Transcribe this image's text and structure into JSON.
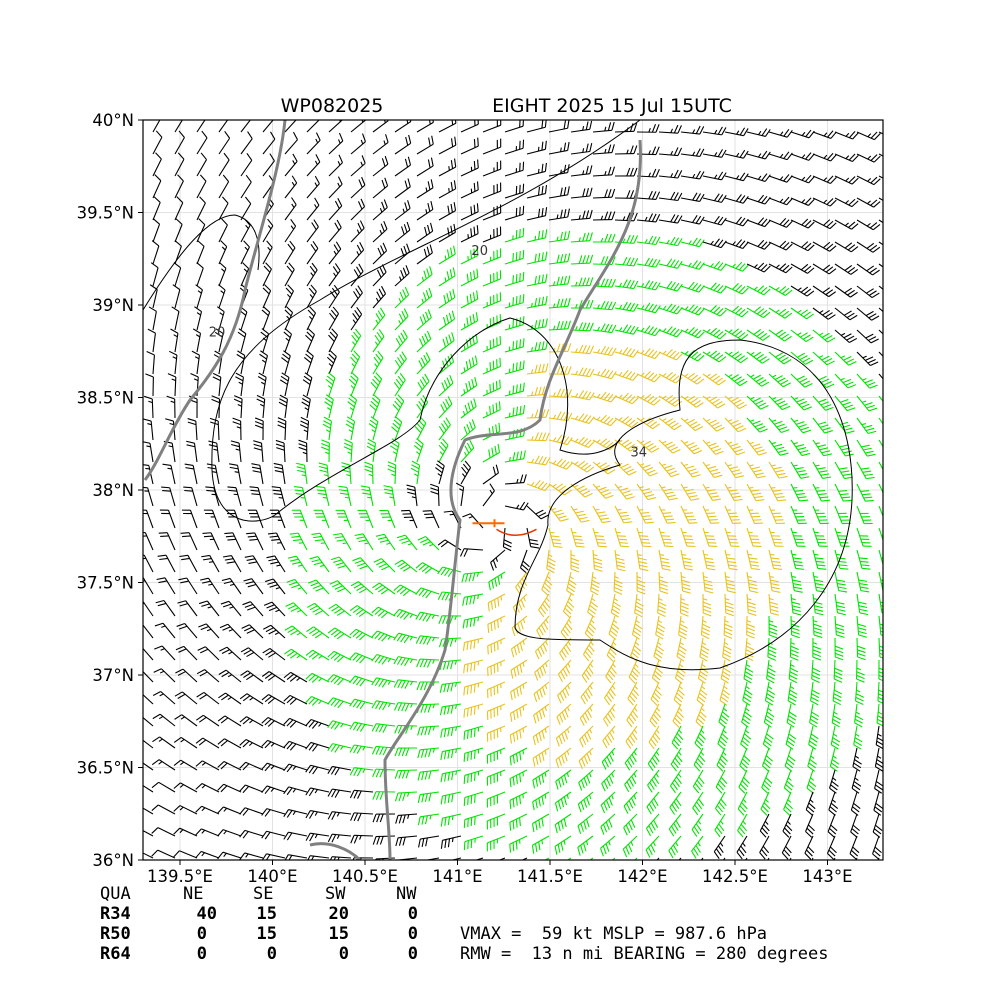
{
  "title_left": "WP082025",
  "title_right": "EIGHT 2025 15 Jul 15UTC",
  "chart_data": {
    "type": "wind barb map",
    "xlim": [
      139.3,
      143.3
    ],
    "ylim": [
      36.0,
      40.0
    ],
    "x_ticks": [
      {
        "v": 139.5,
        "label": "139.5°E"
      },
      {
        "v": 140.0,
        "label": "140°E"
      },
      {
        "v": 140.5,
        "label": "140.5°E"
      },
      {
        "v": 141.0,
        "label": "141°E"
      },
      {
        "v": 141.5,
        "label": "141.5°E"
      },
      {
        "v": 142.0,
        "label": "142°E"
      },
      {
        "v": 142.5,
        "label": "142.5°E"
      },
      {
        "v": 143.0,
        "label": "143°E"
      }
    ],
    "y_ticks": [
      {
        "v": 36.0,
        "label": "36°N"
      },
      {
        "v": 36.5,
        "label": "36.5°N"
      },
      {
        "v": 37.0,
        "label": "37°N"
      },
      {
        "v": 37.5,
        "label": "37.5°N"
      },
      {
        "v": 38.0,
        "label": "38°N"
      },
      {
        "v": 38.5,
        "label": "38.5°N"
      },
      {
        "v": 39.0,
        "label": "39°N"
      },
      {
        "v": 39.5,
        "label": "39.5°N"
      },
      {
        "v": 40.0,
        "label": "40°N"
      }
    ],
    "grid": true,
    "storm_center": {
      "lon": 141.2,
      "lat": 37.82
    },
    "contour_labels": [
      {
        "text": "20",
        "lon": 141.12,
        "lat": 39.27
      },
      {
        "text": "20",
        "lon": 139.7,
        "lat": 38.83
      },
      {
        "text": "34",
        "lon": 141.98,
        "lat": 38.18
      }
    ],
    "barb_colors": {
      "weak": "#000000",
      "r34": "#00e400",
      "r50": "#e8c21e",
      "center": "#ff6a00",
      "coast": "#808080"
    }
  },
  "table": {
    "header": [
      "QUA",
      "NE",
      "SE",
      "SW",
      "NW"
    ],
    "rows": [
      {
        "label": "R34",
        "values": [
          "40",
          "15",
          "20",
          "0"
        ]
      },
      {
        "label": "R50",
        "values": [
          "0",
          "15",
          "15",
          "0"
        ]
      },
      {
        "label": "R64",
        "values": [
          "0",
          "0",
          "0",
          "0"
        ]
      }
    ]
  },
  "stats": {
    "line1": "VMAX =  59 kt MSLP = 987.6 hPa",
    "line2": "RMW =  13 n mi BEARING = 280 degrees"
  }
}
